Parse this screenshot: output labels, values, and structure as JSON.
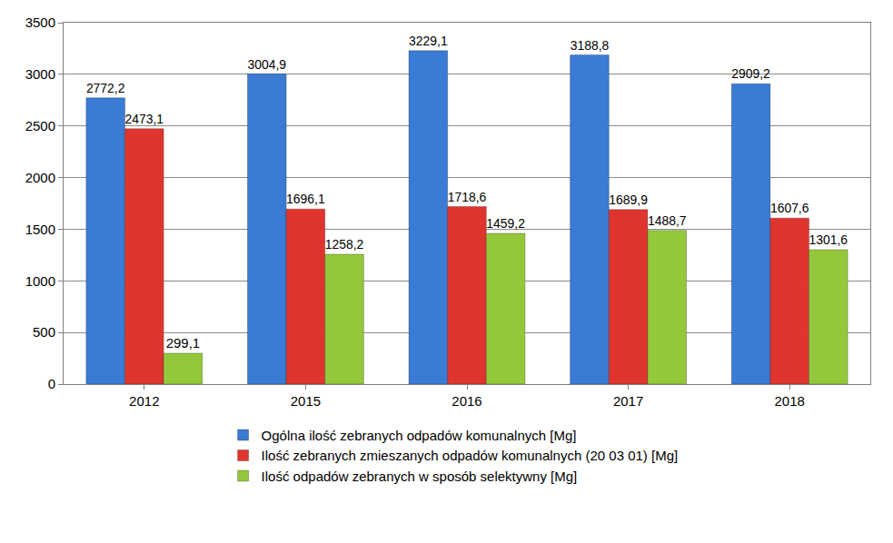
{
  "chart_data": {
    "type": "bar",
    "categories": [
      "2012",
      "2015",
      "2016",
      "2017",
      "2018"
    ],
    "series": [
      {
        "name": "Ogólna ilość zebranych odpadów komunalnych [Mg]",
        "color": "#3a7bd5",
        "values": [
          2772.2,
          3004.9,
          3229.1,
          3188.8,
          2909.2
        ],
        "value_labels": [
          "2772,2",
          "3004,9",
          "3229,1",
          "3188,8",
          "2909,2"
        ]
      },
      {
        "name": "Ilość zebranych zmieszanych odpadów komunalnych (20 03 01) [Mg]",
        "color": "#e0352f",
        "values": [
          2473.1,
          1696.1,
          1718.6,
          1689.9,
          1607.6
        ],
        "value_labels": [
          "2473,1",
          "1696,1",
          "1718,6",
          "1689,9",
          "1607,6"
        ]
      },
      {
        "name": "Ilość odpadów zebranych w sposób selektywny [Mg]",
        "color": "#94c83a",
        "values": [
          299.1,
          1258.2,
          1459.2,
          1488.7,
          1301.6
        ],
        "value_labels": [
          "299,1",
          "1258,2",
          "1459,2",
          "1488,7",
          "1301,6"
        ]
      }
    ],
    "ylim": [
      0,
      3500
    ],
    "yticks": [
      0,
      500,
      1000,
      1500,
      2000,
      2500,
      3000,
      3500
    ],
    "grid": true,
    "legend": "bottom",
    "data_labels": true
  }
}
